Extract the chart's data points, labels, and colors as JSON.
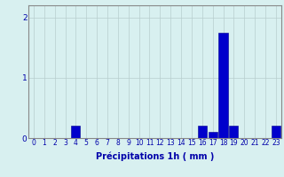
{
  "hours": [
    0,
    1,
    2,
    3,
    4,
    5,
    6,
    7,
    8,
    9,
    10,
    11,
    12,
    13,
    14,
    15,
    16,
    17,
    18,
    19,
    20,
    21,
    22,
    23
  ],
  "values": [
    0,
    0,
    0,
    0,
    0.2,
    0,
    0,
    0,
    0,
    0,
    0,
    0,
    0,
    0,
    0,
    0,
    0.2,
    0.1,
    1.75,
    0.2,
    0,
    0,
    0,
    0.2
  ],
  "bar_color": "#0000cc",
  "bar_edge_color": "#000090",
  "background_color": "#d8f0f0",
  "grid_color": "#b8cece",
  "text_color": "#0000aa",
  "xlabel": "Précipitations 1h ( mm )",
  "ylim": [
    0,
    2.2
  ],
  "yticks": [
    0,
    1,
    2
  ],
  "label_fontsize": 7,
  "tick_fontsize": 5.5
}
